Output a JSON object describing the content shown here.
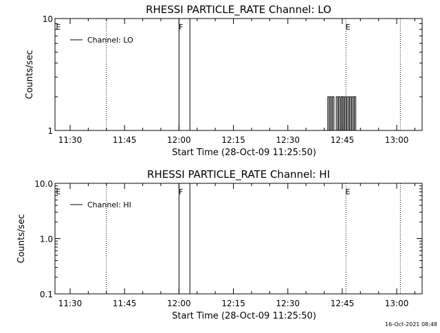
{
  "chart_data": [
    {
      "type": "line",
      "title": "RHESSI PARTICLE_RATE Channel: LO",
      "xlabel": "Start Time (28-Oct-09 11:25:50)",
      "ylabel": "Counts/sec",
      "yscale": "log",
      "ylim": [
        1,
        10
      ],
      "xlim": [
        "11:25:50",
        "13:07:00"
      ],
      "xticks": [
        "11:30",
        "11:45",
        "12:00",
        "12:15",
        "12:30",
        "12:45",
        "13:00"
      ],
      "yticks": [
        "1",
        "10"
      ],
      "legend": {
        "label": "Channel: LO",
        "position": "top-left"
      },
      "markers": [
        {
          "time": "11:26",
          "label": "E",
          "style": "none"
        },
        {
          "time": "11:40",
          "label": "",
          "style": "dotted"
        },
        {
          "time": "12:00",
          "label": "F",
          "style": "solid"
        },
        {
          "time": "12:03",
          "label": "",
          "style": "solid"
        },
        {
          "time": "12:46",
          "label": "E",
          "style": "dotted"
        },
        {
          "time": "13:01",
          "label": "",
          "style": "dotted"
        }
      ],
      "series": [
        {
          "x": [
            "12:40:40",
            "12:41:00",
            "12:41:20",
            "12:41:40",
            "12:42:00",
            "12:42:20",
            "12:42:40",
            "12:43:00",
            "12:43:20",
            "12:43:40",
            "12:44:00",
            "12:44:20",
            "12:44:40",
            "12:45:00",
            "12:45:20",
            "12:45:40",
            "12:46:00",
            "12:46:20",
            "12:46:40",
            "12:47:00",
            "12:47:20",
            "12:47:40",
            "12:48:00",
            "12:48:20",
            "12:48:40"
          ],
          "y": [
            1,
            2,
            1,
            2,
            1,
            2,
            1,
            1,
            2,
            1,
            2,
            1,
            2,
            2,
            1,
            2,
            1,
            2,
            1,
            2,
            1,
            2,
            1,
            2,
            1
          ]
        }
      ]
    },
    {
      "type": "line",
      "title": "RHESSI PARTICLE_RATE Channel: HI",
      "xlabel": "Start Time (28-Oct-09 11:25:50)",
      "ylabel": "Counts/sec",
      "yscale": "log",
      "ylim": [
        0.1,
        10
      ],
      "xlim": [
        "11:25:50",
        "13:07:00"
      ],
      "xticks": [
        "11:30",
        "11:45",
        "12:00",
        "12:15",
        "12:30",
        "12:45",
        "13:00"
      ],
      "yticks": [
        "0.1",
        "1.0",
        "10.0"
      ],
      "legend": {
        "label": "Channel: HI",
        "position": "top-left"
      },
      "markers": [
        {
          "time": "11:26",
          "label": "E",
          "style": "none"
        },
        {
          "time": "11:40",
          "label": "",
          "style": "dotted"
        },
        {
          "time": "12:00",
          "label": "F",
          "style": "solid"
        },
        {
          "time": "12:03",
          "label": "",
          "style": "solid"
        },
        {
          "time": "12:46",
          "label": "E",
          "style": "dotted"
        },
        {
          "time": "13:01",
          "label": "",
          "style": "dotted"
        }
      ],
      "series": []
    }
  ],
  "footer": {
    "timestamp": "16-Oct-2021 08:48"
  }
}
